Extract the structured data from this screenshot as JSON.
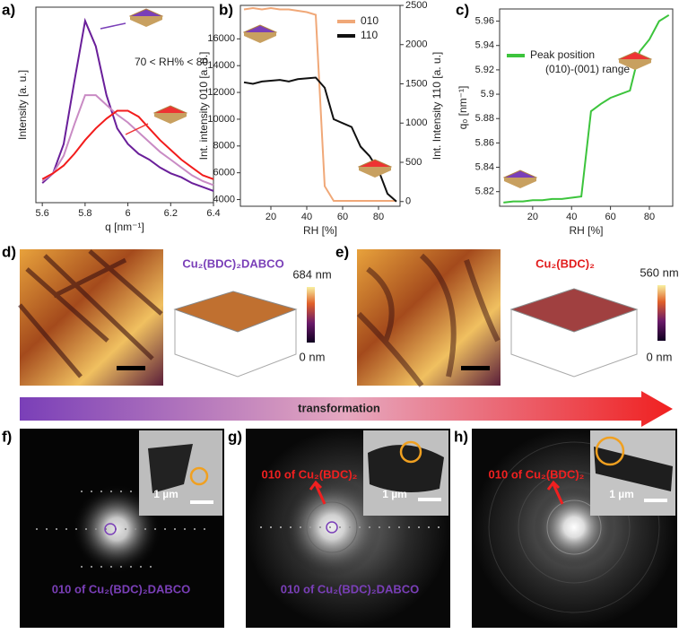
{
  "chart_data": [
    {
      "type": "line",
      "xlabel": "q [nm⁻¹]",
      "ylabel": "Intensity [a. u.]",
      "x": [
        5.6,
        5.65,
        5.7,
        5.75,
        5.8,
        5.85,
        5.9,
        5.95,
        6.0,
        6.05,
        6.1,
        6.15,
        6.2,
        6.25,
        6.3,
        6.35,
        6.4
      ],
      "series": [
        {
          "color": "#6a1f9a",
          "values": [
            10,
            15,
            30,
            62,
            93,
            80,
            55,
            38,
            30,
            25,
            22,
            18,
            15,
            13,
            10,
            8,
            6
          ]
        },
        {
          "color": "#c98bc4",
          "values": [
            11,
            15,
            24,
            40,
            55,
            55,
            50,
            45,
            41,
            36,
            31,
            26,
            22,
            18,
            14,
            11,
            9
          ]
        },
        {
          "color": "#f21c1c",
          "values": [
            12,
            15,
            19,
            25,
            32,
            38,
            43,
            47,
            47,
            44,
            38,
            32,
            27,
            22,
            18,
            14,
            12
          ]
        }
      ],
      "xlim": [
        5.57,
        6.4
      ],
      "ylim": [
        0,
        100
      ],
      "xticks": [
        5.6,
        5.8,
        6.0,
        6.2,
        6.4
      ],
      "annotations": [
        "70 < RH% < 80"
      ]
    },
    {
      "type": "line",
      "xlabel": "RH [%]",
      "ylabel": "Int. intensity 010 [a. u.]",
      "y2label": "Int. Intensity 110 [a. u.]",
      "x": [
        5,
        10,
        15,
        20,
        25,
        30,
        35,
        40,
        45,
        50,
        55,
        60,
        65,
        70,
        75,
        80,
        85,
        90
      ],
      "series": [
        {
          "name": "010",
          "color": "#f0a878",
          "values": [
            18200,
            18300,
            18200,
            18300,
            18200,
            18200,
            18100,
            18000,
            17800,
            5000,
            3900,
            3900,
            3900,
            3900,
            3900,
            3900,
            3900,
            3900
          ]
        },
        {
          "name": "110",
          "color": "#111111",
          "axis": "y2",
          "values": [
            1520,
            1500,
            1530,
            1540,
            1550,
            1530,
            1560,
            1570,
            1580,
            1450,
            1050,
            1000,
            950,
            700,
            580,
            400,
            100,
            0
          ]
        }
      ],
      "xlim": [
        3,
        92
      ],
      "ylim": [
        3500,
        18500
      ],
      "y2lim": [
        -60,
        2500
      ],
      "xticks": [
        20,
        40,
        60,
        80
      ],
      "yticks": [
        4000,
        6000,
        8000,
        10000,
        12000,
        14000,
        16000
      ],
      "y2ticks": [
        0,
        500,
        1000,
        1500,
        2000,
        2500
      ],
      "legend": "upper right"
    },
    {
      "type": "line",
      "xlabel": "RH [%]",
      "ylabel": "q₀ [nm⁻¹]",
      "x": [
        5,
        10,
        15,
        20,
        25,
        30,
        35,
        40,
        45,
        50,
        55,
        60,
        65,
        70,
        75,
        80,
        85,
        90
      ],
      "series": [
        {
          "name": "Peak position",
          "color": "#3cc43c",
          "values": [
            5.811,
            5.812,
            5.812,
            5.813,
            5.813,
            5.814,
            5.814,
            5.815,
            5.816,
            5.886,
            5.892,
            5.897,
            5.9,
            5.903,
            5.935,
            5.945,
            5.96,
            5.965
          ]
        }
      ],
      "xlim": [
        3,
        92
      ],
      "ylim": [
        5.808,
        5.97
      ],
      "xticks": [
        20,
        40,
        60,
        80
      ],
      "yticks": [
        5.82,
        5.84,
        5.86,
        5.88,
        5.9,
        5.92,
        5.94,
        5.96
      ],
      "legend": "center left",
      "annotations": [
        "(010)-(001) range"
      ]
    }
  ],
  "panels": {
    "labels": [
      "a)",
      "b)",
      "c)",
      "d)",
      "e)",
      "f)",
      "g)",
      "h)"
    ],
    "d": {
      "title": "Cu₂(BDC)₂DABCO",
      "cbar_max": "684 nm",
      "cbar_min": "0 nm"
    },
    "e": {
      "title": "Cu₂(BDC)₂",
      "cbar_max": "560 nm",
      "cbar_min": "0 nm"
    },
    "arrow": "transformation",
    "f": {
      "scale": "1 µm",
      "caption": "010 of Cu₂(BDC)₂DABCO"
    },
    "g": {
      "scale": "1 µm",
      "arrow_label": "010 of Cu₂(BDC)₂",
      "caption": "010 of Cu₂(BDC)₂DABCO"
    },
    "h": {
      "scale": "1 µm",
      "arrow_label": "010 of Cu₂(BDC)₂"
    }
  }
}
